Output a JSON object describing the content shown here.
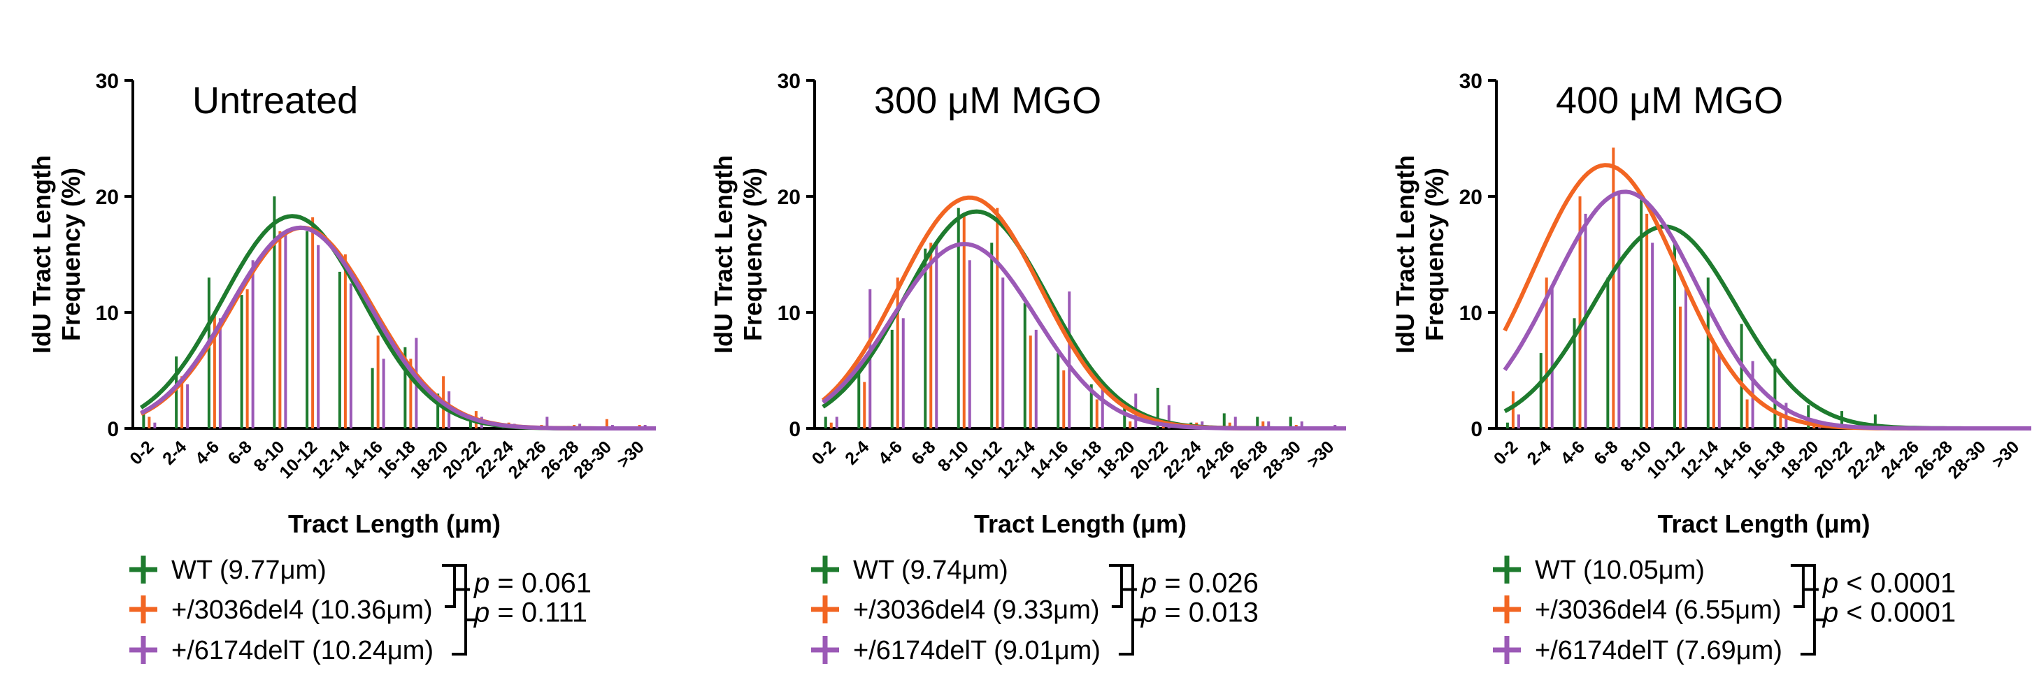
{
  "chart_data": [
    {
      "type": "bar",
      "title": "Untreated",
      "xlabel": "Tract Length (μm)",
      "ylabel": "IdU Tract Length Frequency (%)",
      "ylim": [
        0,
        30
      ],
      "yticks": [
        0,
        10,
        20,
        30
      ],
      "categories": [
        "0-2",
        "2-4",
        "4-6",
        "6-8",
        "8-10",
        "10-12",
        "12-14",
        "14-16",
        "16-18",
        "18-20",
        "20-22",
        "22-24",
        "24-26",
        "26-28",
        "28-30",
        ">30"
      ],
      "series": [
        {
          "name": "WT (9.77μm)",
          "color": "#1e7b2e",
          "values": [
            1.5,
            6.2,
            13.0,
            11.5,
            20.0,
            17.0,
            13.5,
            5.2,
            7.0,
            3.0,
            0.8,
            0.2,
            0.2,
            0.2,
            0.1,
            0.1
          ],
          "fit": {
            "peak": 18.3,
            "mean": 9.77
          }
        },
        {
          "name": "+/3036del4 (10.36μm)",
          "color": "#f26522",
          "values": [
            1.0,
            4.5,
            10.0,
            12.0,
            17.0,
            18.2,
            15.0,
            8.0,
            6.0,
            4.5,
            1.5,
            0.5,
            0.3,
            0.3,
            0.8,
            0.3
          ],
          "fit": {
            "peak": 17.3,
            "mean": 10.36
          }
        },
        {
          "name": "+/6174delT (10.24μm)",
          "color": "#9b59b6",
          "values": [
            0.5,
            3.8,
            9.5,
            14.5,
            17.0,
            15.8,
            12.5,
            6.0,
            7.8,
            3.2,
            1.0,
            0.4,
            1.0,
            0.4,
            0.3,
            0.3
          ],
          "fit": {
            "peak": 17.3,
            "mean": 10.24
          }
        }
      ],
      "legend": {
        "entries": [
          "WT (9.77μm)",
          "+/3036del4 (10.36μm)",
          "+/6174delT (10.24μm)"
        ],
        "p_values": [
          {
            "label": "p",
            "text": " = 0.061"
          },
          {
            "label": "p",
            "text": " = 0.111"
          }
        ]
      }
    },
    {
      "type": "bar",
      "title": "300 μM MGO",
      "xlabel": "Tract Length (μm)",
      "ylabel": "IdU Tract Length Frequency (%)",
      "ylim": [
        0,
        30
      ],
      "yticks": [
        0,
        10,
        20,
        30
      ],
      "categories": [
        "0-2",
        "2-4",
        "4-6",
        "6-8",
        "8-10",
        "10-12",
        "12-14",
        "14-16",
        "16-18",
        "18-20",
        "20-22",
        "22-24",
        "24-26",
        "26-28",
        "28-30",
        ">30"
      ],
      "series": [
        {
          "name": "WT (9.74μm)",
          "color": "#1e7b2e",
          "values": [
            1.0,
            5.0,
            8.5,
            15.5,
            19.0,
            16.0,
            10.8,
            6.5,
            3.8,
            2.0,
            3.5,
            0.5,
            1.3,
            1.0,
            1.0,
            0.1
          ],
          "fit": {
            "peak": 18.7,
            "mean": 9.74
          }
        },
        {
          "name": "+/3036del4 (9.33μm)",
          "color": "#f26522",
          "values": [
            0.5,
            4.0,
            13.0,
            16.0,
            18.5,
            19.0,
            8.0,
            5.0,
            2.5,
            0.6,
            0.3,
            0.5,
            0.5,
            0.6,
            0.3,
            0.1
          ],
          "fit": {
            "peak": 19.9,
            "mean": 9.33
          }
        },
        {
          "name": "+/6174delT (9.01μm)",
          "color": "#9b59b6",
          "values": [
            1.0,
            12.0,
            9.5,
            16.0,
            14.5,
            13.0,
            8.5,
            11.8,
            3.5,
            3.0,
            2.0,
            0.6,
            1.0,
            0.6,
            0.6,
            0.3
          ],
          "fit": {
            "peak": 15.9,
            "mean": 9.01
          }
        }
      ],
      "legend": {
        "entries": [
          "WT (9.74μm)",
          "+/3036del4 (9.33μm)",
          "+/6174delT (9.01μm)"
        ],
        "p_values": [
          {
            "label": "p",
            "text": " = 0.026"
          },
          {
            "label": "p",
            "text": " = 0.013"
          }
        ]
      }
    },
    {
      "type": "bar",
      "title": "400 μM MGO",
      "xlabel": "Tract Length (μm)",
      "ylabel": "IdU Tract Length Frequency (%)",
      "ylim": [
        0,
        30
      ],
      "yticks": [
        0,
        10,
        20,
        30
      ],
      "categories": [
        "0-2",
        "2-4",
        "4-6",
        "6-8",
        "8-10",
        "10-12",
        "12-14",
        "14-16",
        "16-18",
        "18-20",
        "20-22",
        "22-24",
        "24-26",
        "26-28",
        "28-30",
        ">30"
      ],
      "series": [
        {
          "name": "WT (10.05μm)",
          "color": "#1e7b2e",
          "values": [
            0.5,
            6.5,
            9.5,
            13.0,
            20.0,
            16.0,
            13.0,
            9.0,
            6.0,
            2.0,
            1.5,
            1.2,
            0.1,
            0.1,
            0.1,
            0.1
          ],
          "fit": {
            "peak": 17.4,
            "mean": 10.05
          }
        },
        {
          "name": "+/3036del4 (6.55μm)",
          "color": "#f26522",
          "values": [
            3.2,
            13.0,
            20.0,
            24.2,
            18.5,
            10.5,
            7.5,
            2.5,
            1.0,
            0.3,
            0.1,
            0.1,
            0.1,
            0.1,
            0.1,
            0.1
          ],
          "fit": {
            "peak": 22.7,
            "mean": 6.55
          }
        },
        {
          "name": "+/6174delT (7.69μm)",
          "color": "#9b59b6",
          "values": [
            1.2,
            12.0,
            18.5,
            20.5,
            16.0,
            12.0,
            6.5,
            5.8,
            2.2,
            0.5,
            0.2,
            0.1,
            0.1,
            0.1,
            0.1,
            0.1
          ],
          "fit": {
            "peak": 20.4,
            "mean": 7.69
          }
        }
      ],
      "legend": {
        "entries": [
          "WT (10.05μm)",
          "+/3036del4 (6.55μm)",
          "+/6174delT (7.69μm)"
        ],
        "p_values": [
          {
            "label": "p",
            "text": " < 0.0001"
          },
          {
            "label": "p",
            "text": " < 0.0001"
          }
        ]
      }
    }
  ]
}
